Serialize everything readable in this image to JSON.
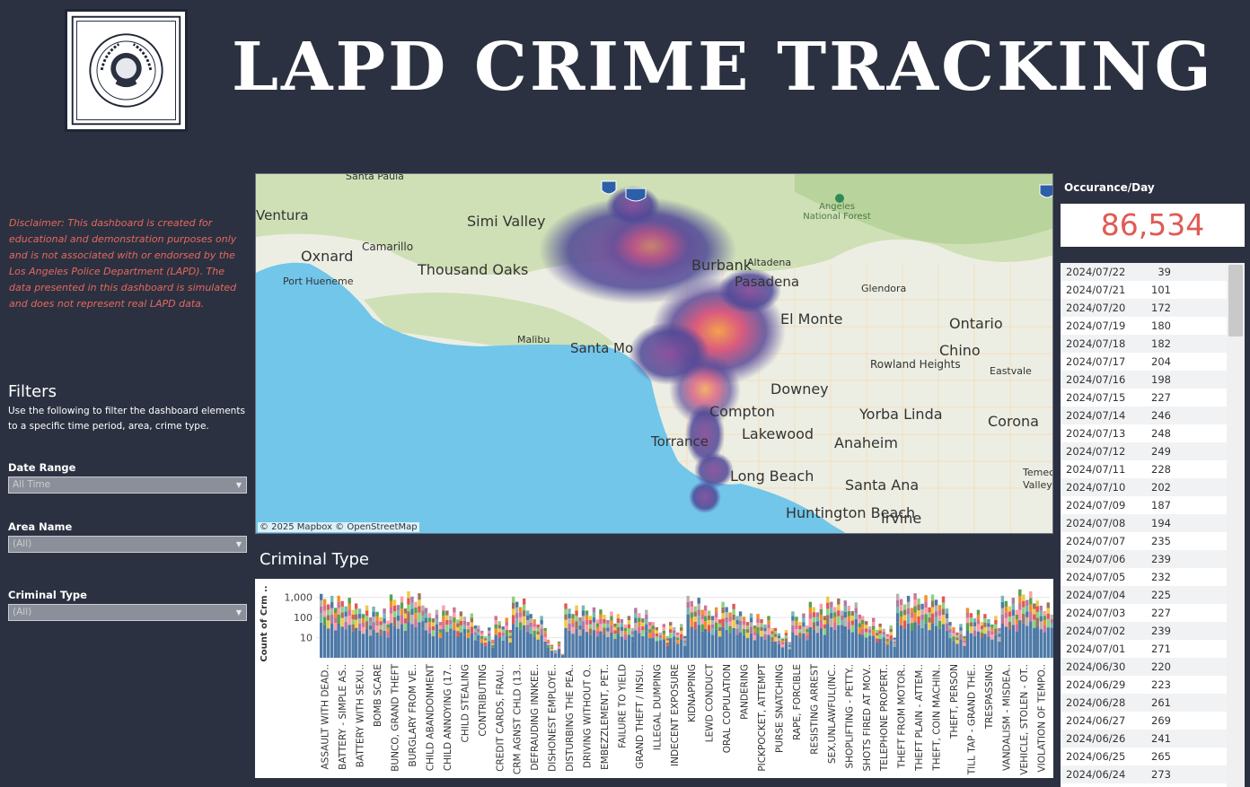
{
  "header": {
    "logo_text": "LAPD LLILAPI",
    "title": "LAPD CRIME TRACKING"
  },
  "disclaimer": "Disclaimer: This dashboard is created for educational and demonstration purposes only and is not associated with or endorsed by the Los Angeles Police Department (LAPD). The data presented in this dashboard is simulated and does not represent real LAPD data.",
  "filters": {
    "title": "Filters",
    "description": "Use the following to filter the dashboard elements to a specific time period, area, crime type.",
    "date_range": {
      "label": "Date Range",
      "value": "All Time"
    },
    "area_name": {
      "label": "Area Name",
      "value": "(All)"
    },
    "criminal_type": {
      "label": "Criminal Type",
      "value": "(All)"
    }
  },
  "map": {
    "credit": "© 2025 Mapbox © OpenStreetMap",
    "cities": [
      "Santa Paula",
      "Ventura",
      "Simi Valley",
      "Camarillo",
      "Oxnard",
      "Thousand Oaks",
      "Port Hueneme",
      "Malibu",
      "Santa Mo",
      "Burbank",
      "Altadena",
      "Pasadena",
      "Glendora",
      "El Monte",
      "Ontario",
      "Chino",
      "Rowland Heights",
      "Eastvale",
      "Downey",
      "Yorba Linda",
      "Corona",
      "Compton",
      "Torrance",
      "Lakewood",
      "Anaheim",
      "Long Beach",
      "Santa Ana",
      "Huntington Beach",
      "Irvine",
      "Temecula Valley",
      "Angeles National Forest"
    ],
    "route_badges": [
      "5",
      "405",
      "15"
    ],
    "heat_color_low": "#5b4a98",
    "heat_color_high": "#f4a24c"
  },
  "occurrence": {
    "label": "Occurance/Day",
    "value": "86,534",
    "value_color": "#e05a54"
  },
  "daily_counts": [
    {
      "date": "2024/07/22",
      "count": "39"
    },
    {
      "date": "2024/07/21",
      "count": "101"
    },
    {
      "date": "2024/07/20",
      "count": "172"
    },
    {
      "date": "2024/07/19",
      "count": "180"
    },
    {
      "date": "2024/07/18",
      "count": "182"
    },
    {
      "date": "2024/07/17",
      "count": "204"
    },
    {
      "date": "2024/07/16",
      "count": "198"
    },
    {
      "date": "2024/07/15",
      "count": "227"
    },
    {
      "date": "2024/07/14",
      "count": "246"
    },
    {
      "date": "2024/07/13",
      "count": "248"
    },
    {
      "date": "2024/07/12",
      "count": "249"
    },
    {
      "date": "2024/07/11",
      "count": "228"
    },
    {
      "date": "2024/07/10",
      "count": "202"
    },
    {
      "date": "2024/07/09",
      "count": "187"
    },
    {
      "date": "2024/07/08",
      "count": "194"
    },
    {
      "date": "2024/07/07",
      "count": "235"
    },
    {
      "date": "2024/07/06",
      "count": "239"
    },
    {
      "date": "2024/07/05",
      "count": "232"
    },
    {
      "date": "2024/07/04",
      "count": "225"
    },
    {
      "date": "2024/07/03",
      "count": "227"
    },
    {
      "date": "2024/07/02",
      "count": "239"
    },
    {
      "date": "2024/07/01",
      "count": "271"
    },
    {
      "date": "2024/06/30",
      "count": "220"
    },
    {
      "date": "2024/06/29",
      "count": "223"
    },
    {
      "date": "2024/06/28",
      "count": "261"
    },
    {
      "date": "2024/06/27",
      "count": "269"
    },
    {
      "date": "2024/06/26",
      "count": "241"
    },
    {
      "date": "2024/06/25",
      "count": "265"
    },
    {
      "date": "2024/06/24",
      "count": "273"
    }
  ],
  "chart_data": {
    "type": "bar",
    "title": "Criminal Type",
    "ylabel": "Count of Crm ..",
    "y_scale": "log",
    "yticks": [
      "10",
      "100",
      "1,000"
    ],
    "ylim": [
      1,
      3000
    ],
    "categories": [
      "ASSAULT WITH DEAD..",
      "BATTERY - SIMPLE AS..",
      "BATTERY WITH SEXU..",
      "BOMB SCARE",
      "BUNCO, GRAND THEFT",
      "BURGLARY FROM VE..",
      "CHILD ABANDONMENT",
      "CHILD ANNOYING (17..",
      "CHILD STEALING",
      "CONTRIBUTING",
      "CREDIT CARDS, FRAU..",
      "CRM AGNST CHLD (13..",
      "DEFRAUDING INNKEE..",
      "DISHONEST EMPLOYE..",
      "DISTURBING THE PEA..",
      "DRIVING WITHOUT O..",
      "EMBEZZLEMENT, PET..",
      "FAILURE TO YIELD",
      "GRAND THEFT / INSU..",
      "ILLEGAL DUMPING",
      "INDECENT EXPOSURE",
      "KIDNAPPING",
      "LEWD CONDUCT",
      "ORAL COPULATION",
      "PANDERING",
      "PICKPOCKET, ATTEMPT",
      "PURSE SNATCHING",
      "RAPE, FORCIBLE",
      "RESISTING ARREST",
      "SEX,UNLAWFUL(INC..",
      "SHOPLIFTING - PETTY..",
      "SHOTS FIRED AT MOV..",
      "TELEPHONE PROPERT..",
      "THEFT FROM MOTOR..",
      "THEFT PLAIN - ATTEM..",
      "THEFT, COIN MACHIN..",
      "THEFT, PERSON",
      "TILL TAP - GRAND THE..",
      "TRESPASSING",
      "VANDALISM - MISDEA..",
      "VEHICLE, STOLEN - OT..",
      "VIOLATION OF TEMPO.."
    ],
    "values": [
      1500,
      1200,
      500,
      350,
      1400,
      2000,
      300,
      400,
      200,
      40,
      120,
      1100,
      150,
      8,
      500,
      400,
      250,
      150,
      300,
      60,
      60,
      1200,
      400,
      600,
      200,
      150,
      30,
      200,
      600,
      1100,
      700,
      120,
      50,
      1500,
      1600,
      1400,
      60,
      300,
      150,
      1200,
      2500,
      700
    ]
  }
}
